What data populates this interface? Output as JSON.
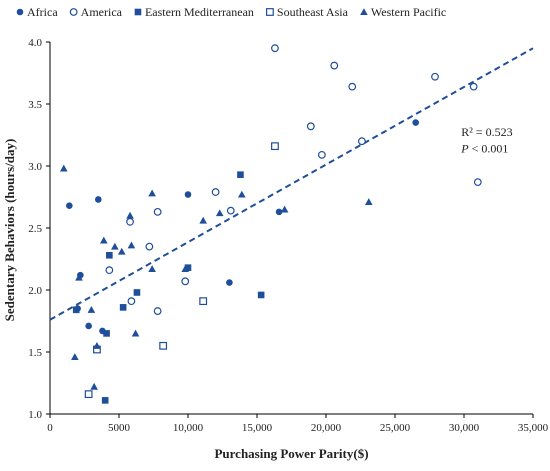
{
  "chart_data": {
    "type": "scatter",
    "xlabel": "Purchasing Power Parity($)",
    "ylabel": "Sedentary Behaviors (hours/day)",
    "xlim": [
      0,
      35000
    ],
    "ylim": [
      1.0,
      4.0
    ],
    "x_ticks": [
      0,
      5000,
      10000,
      15000,
      20000,
      25000,
      30000,
      35000
    ],
    "x_tick_labels": [
      "0",
      "5000",
      "10,000",
      "15,000",
      "20,000",
      "25,000",
      "30,000",
      "35,000"
    ],
    "y_ticks": [
      1.0,
      1.5,
      2.0,
      2.5,
      3.0,
      3.5,
      4.0
    ],
    "y_tick_labels": [
      "1.0",
      "1.5",
      "2.0",
      "2.5",
      "3.0",
      "3.5",
      "4.0"
    ],
    "grid": false,
    "legend_position": "top",
    "colors": {
      "marker": "#1f4e9a",
      "line": "#1f4e9a"
    },
    "annotation": {
      "r2_text": "R² = 0.523",
      "p_italic": "P",
      "p_rest": " < 0.001"
    },
    "trendline": {
      "style": "dashed",
      "x": [
        0,
        35000
      ],
      "y": [
        1.76,
        3.95
      ]
    },
    "series": [
      {
        "name": "Africa",
        "marker": "filled-circle",
        "points": [
          [
            1400,
            2.68
          ],
          [
            2200,
            2.12
          ],
          [
            3500,
            2.73
          ],
          [
            2000,
            1.85
          ],
          [
            2800,
            1.71
          ],
          [
            3800,
            1.67
          ],
          [
            10000,
            2.77
          ],
          [
            13000,
            2.06
          ],
          [
            16600,
            2.63
          ],
          [
            26500,
            3.35
          ]
        ]
      },
      {
        "name": "America",
        "marker": "open-circle",
        "points": [
          [
            4300,
            2.16
          ],
          [
            5800,
            2.55
          ],
          [
            5900,
            1.91
          ],
          [
            7200,
            2.35
          ],
          [
            7800,
            2.63
          ],
          [
            7800,
            1.83
          ],
          [
            9800,
            2.07
          ],
          [
            12000,
            2.79
          ],
          [
            13100,
            2.64
          ],
          [
            16300,
            3.95
          ],
          [
            18900,
            3.32
          ],
          [
            19700,
            3.09
          ],
          [
            20600,
            3.81
          ],
          [
            21900,
            3.64
          ],
          [
            22600,
            3.2
          ],
          [
            27900,
            3.72
          ],
          [
            30700,
            3.64
          ],
          [
            31000,
            2.87
          ]
        ]
      },
      {
        "name": "Eastern Mediterranean",
        "marker": "filled-square",
        "points": [
          [
            1900,
            1.84
          ],
          [
            4100,
            1.65
          ],
          [
            4300,
            2.28
          ],
          [
            4000,
            1.11
          ],
          [
            5300,
            1.86
          ],
          [
            6300,
            1.98
          ],
          [
            10000,
            2.18
          ],
          [
            13800,
            2.93
          ],
          [
            15300,
            1.96
          ]
        ]
      },
      {
        "name": "Southeast Asia",
        "marker": "open-square",
        "points": [
          [
            2800,
            1.16
          ],
          [
            3400,
            1.52
          ],
          [
            8200,
            1.55
          ],
          [
            11100,
            1.91
          ],
          [
            16300,
            3.16
          ]
        ]
      },
      {
        "name": "Western Pacific",
        "marker": "filled-triangle",
        "points": [
          [
            1000,
            2.98
          ],
          [
            1800,
            1.46
          ],
          [
            2100,
            2.1
          ],
          [
            3000,
            1.84
          ],
          [
            3200,
            1.22
          ],
          [
            3400,
            1.55
          ],
          [
            3900,
            2.4
          ],
          [
            4700,
            2.35
          ],
          [
            5200,
            2.31
          ],
          [
            5800,
            2.6
          ],
          [
            5900,
            2.36
          ],
          [
            6200,
            1.65
          ],
          [
            7400,
            2.17
          ],
          [
            7400,
            2.78
          ],
          [
            9800,
            2.17
          ],
          [
            11100,
            2.56
          ],
          [
            12300,
            2.62
          ],
          [
            13900,
            2.77
          ],
          [
            17000,
            2.65
          ],
          [
            23100,
            2.71
          ]
        ]
      }
    ]
  }
}
